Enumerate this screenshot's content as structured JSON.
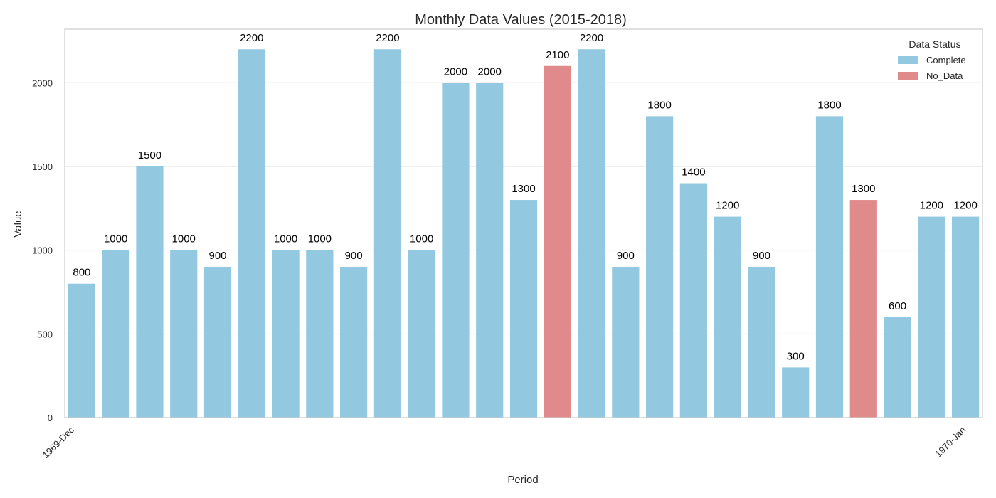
{
  "chart_data": {
    "type": "bar",
    "title": "Monthly Data Values (2015-2018)",
    "xlabel": "Period",
    "ylabel": "Value",
    "ylim": [
      0,
      2320
    ],
    "yticks": [
      0,
      500,
      1000,
      1500,
      2000
    ],
    "grid": "horizontal",
    "x_tick_labels": [
      "1969-Dec",
      "1970-Jan"
    ],
    "values": [
      800,
      1000,
      1500,
      1000,
      900,
      2200,
      1000,
      1000,
      900,
      2200,
      1000,
      2000,
      2000,
      1300,
      2100,
      2200,
      900,
      1800,
      1400,
      1200,
      900,
      300,
      1800,
      1300,
      600,
      1200,
      1200
    ],
    "status": [
      "Complete",
      "Complete",
      "Complete",
      "Complete",
      "Complete",
      "Complete",
      "Complete",
      "Complete",
      "Complete",
      "Complete",
      "Complete",
      "Complete",
      "Complete",
      "Complete",
      "No_Data",
      "Complete",
      "Complete",
      "Complete",
      "Complete",
      "Complete",
      "Complete",
      "Complete",
      "Complete",
      "No_Data",
      "Complete",
      "Complete",
      "Complete"
    ],
    "legend": {
      "title": "Data Status",
      "placement": "top-right",
      "entries": [
        {
          "name": "Complete",
          "color": "#92c9e0"
        },
        {
          "name": "No_Data",
          "color": "#e08a8c"
        }
      ]
    }
  }
}
